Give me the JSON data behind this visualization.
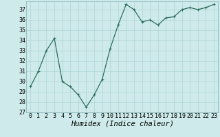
{
  "x": [
    0,
    1,
    2,
    3,
    4,
    5,
    6,
    7,
    8,
    9,
    10,
    11,
    12,
    13,
    14,
    15,
    16,
    17,
    18,
    19,
    20,
    21,
    22,
    23
  ],
  "y": [
    29.5,
    31.0,
    33.0,
    34.2,
    30.0,
    29.5,
    28.7,
    27.5,
    28.7,
    30.2,
    33.2,
    35.5,
    37.5,
    37.0,
    35.8,
    36.0,
    35.5,
    36.2,
    36.3,
    37.0,
    37.2,
    37.0,
    37.2,
    37.5
  ],
  "line_color": "#2d6e5e",
  "marker": "+",
  "marker_size": 3,
  "marker_linewidth": 0.8,
  "bg_color": "#ceeaea",
  "grid_color": "#add4d4",
  "xlabel": "Humidex (Indice chaleur)",
  "ylim": [
    27,
    37.8
  ],
  "yticks": [
    27,
    28,
    29,
    30,
    31,
    32,
    33,
    34,
    35,
    36,
    37
  ],
  "xticks": [
    0,
    1,
    2,
    3,
    4,
    5,
    6,
    7,
    8,
    9,
    10,
    11,
    12,
    13,
    14,
    15,
    16,
    17,
    18,
    19,
    20,
    21,
    22,
    23
  ],
  "label_fontsize": 7.5,
  "tick_fontsize": 6,
  "line_width": 0.9
}
